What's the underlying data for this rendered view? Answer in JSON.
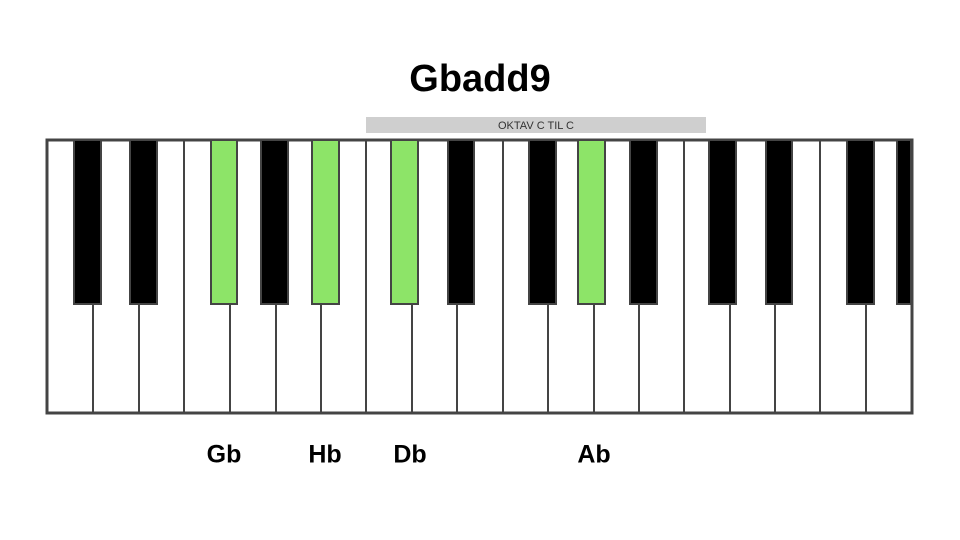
{
  "title": "Gbadd9",
  "range_label": "OKTAV C TIL C",
  "notes": [
    "Gb",
    "Hb",
    "Db",
    "Ab"
  ]
}
